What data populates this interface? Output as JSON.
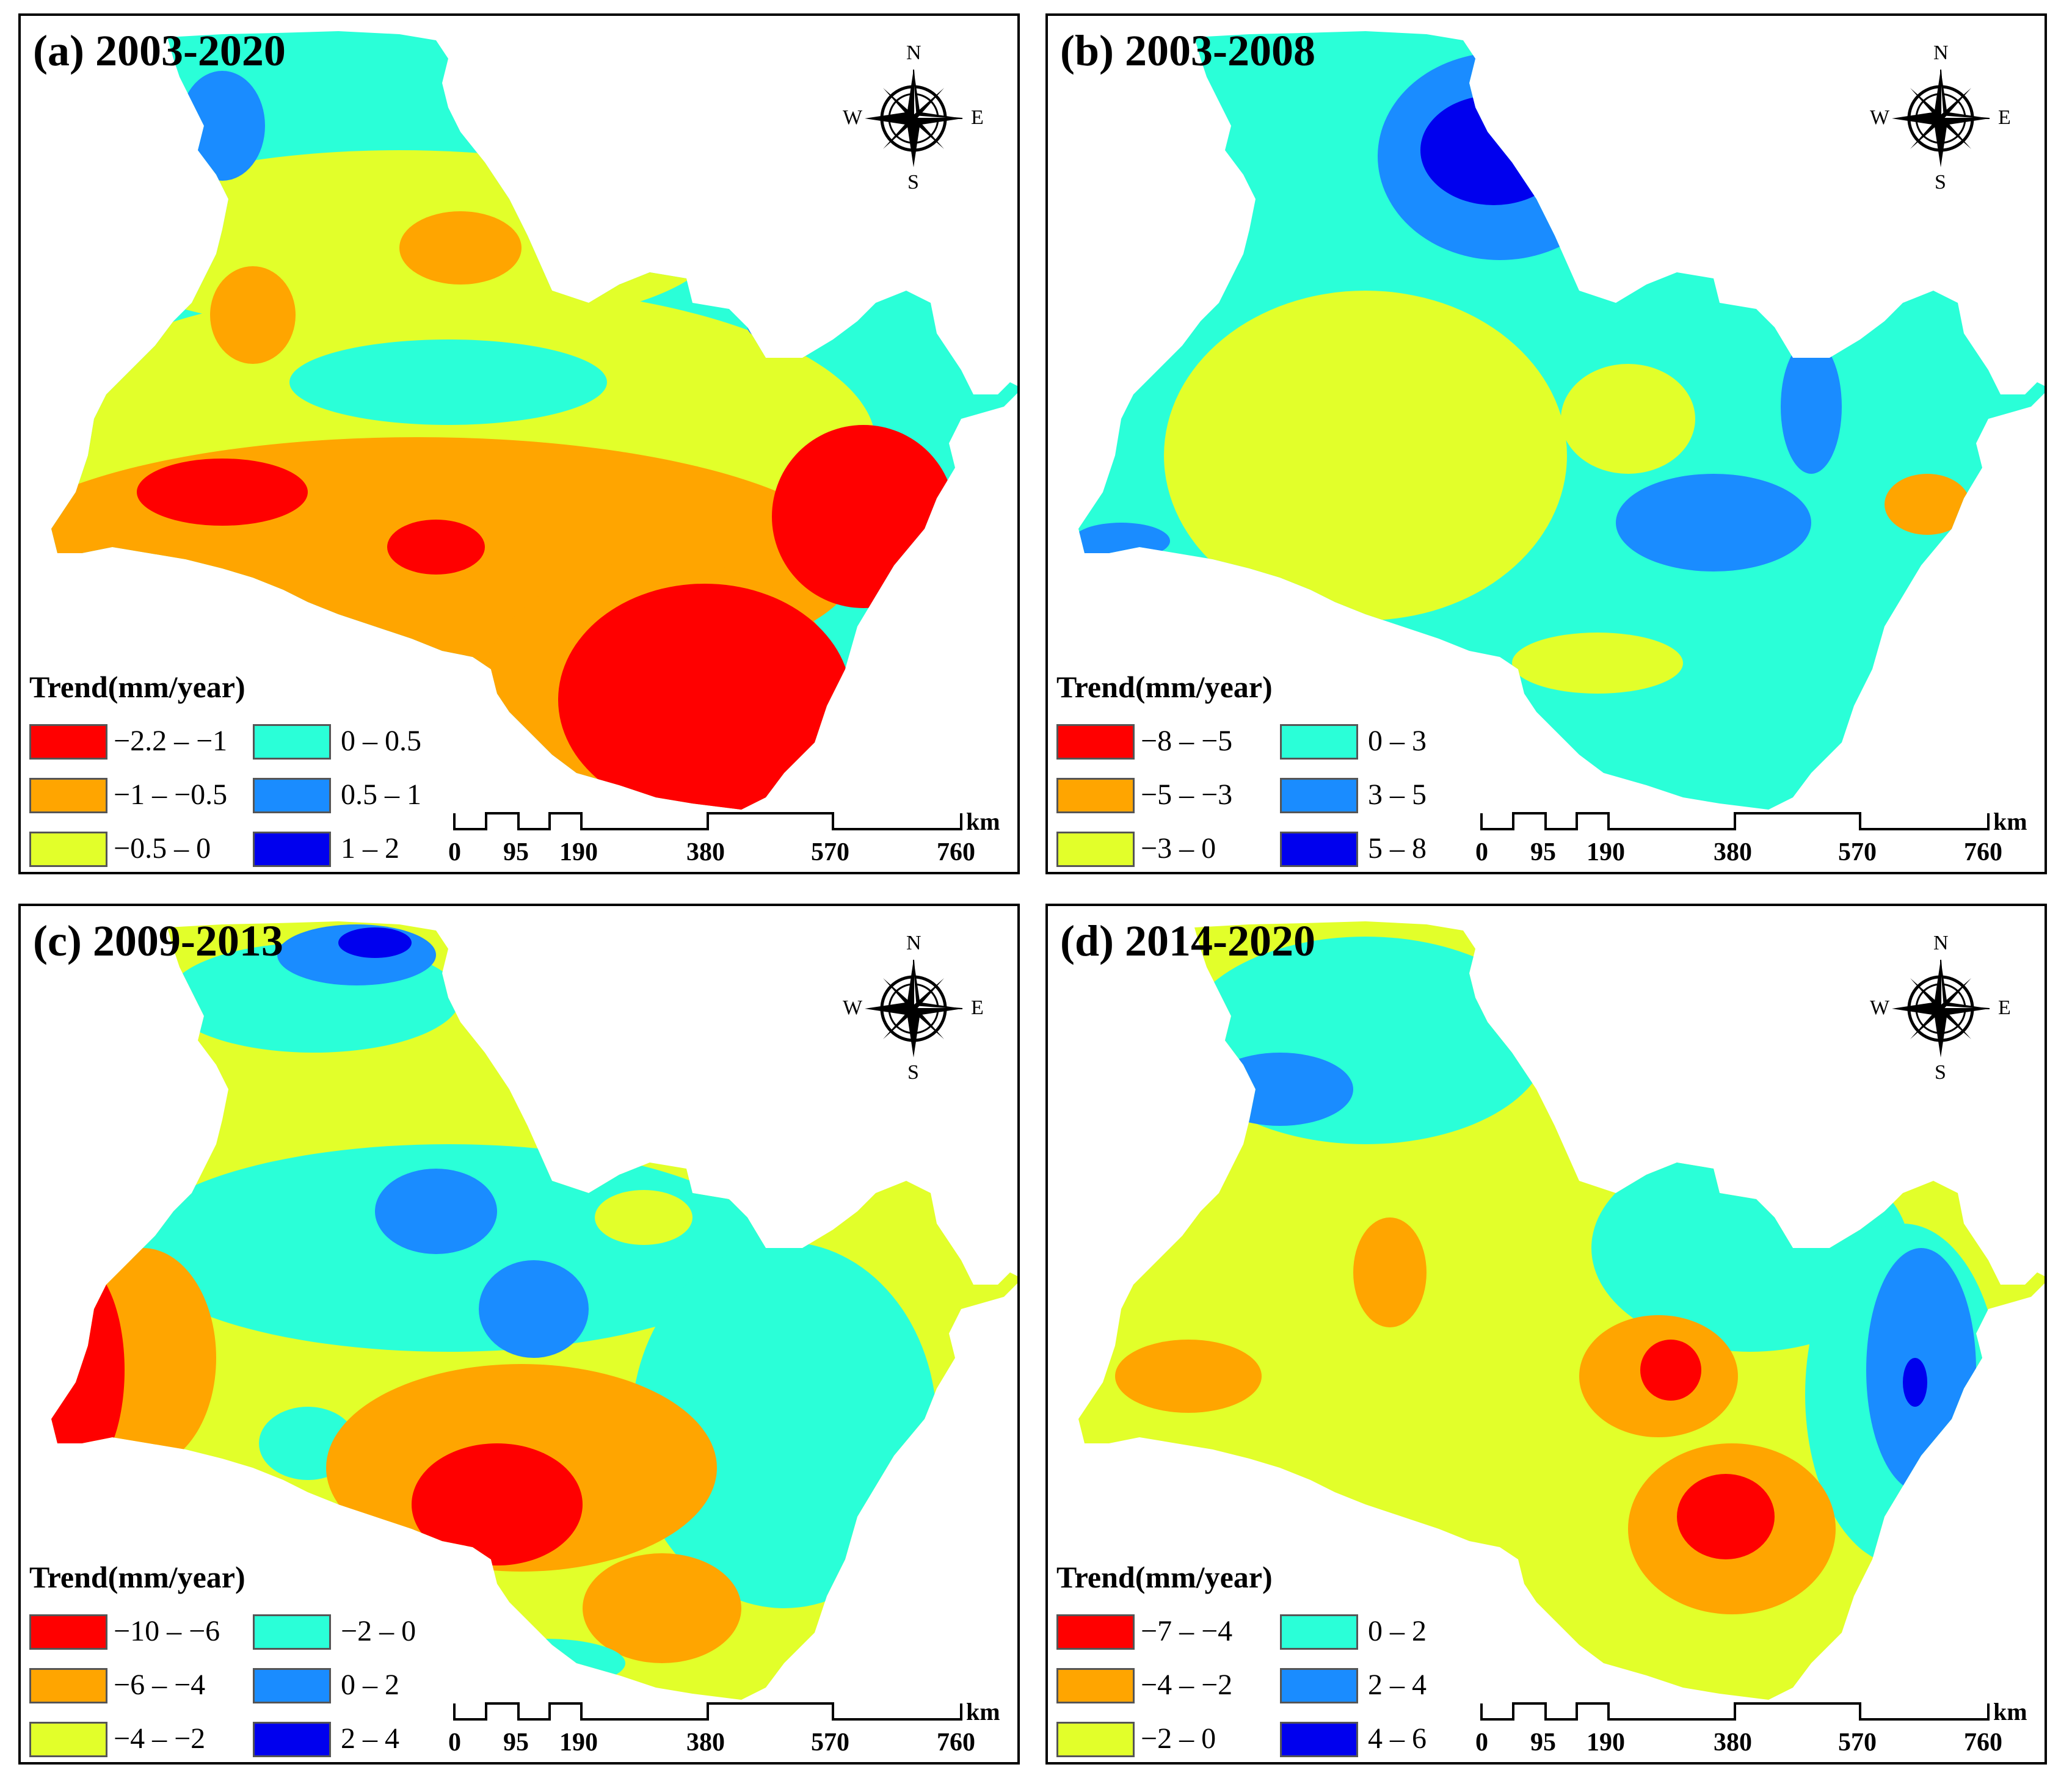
{
  "colors": {
    "red": "#ff0000",
    "orange": "#ffa500",
    "yellow": "#e2ff2a",
    "cyan": "#2affd8",
    "blue": "#1a8cff",
    "navy": "#0000ee"
  },
  "compass": {
    "n": "N",
    "s": "S",
    "e": "E",
    "w": "W"
  },
  "legend_title": "Trend(mm/year)",
  "scale": {
    "unit": "km",
    "ticks": [
      "0",
      "95",
      "190",
      "380",
      "570",
      "760"
    ]
  },
  "panels": [
    {
      "title": "(a) 2003-2020",
      "classes": [
        {
          "label": "−2.2 – −1",
          "color": "#ff0000"
        },
        {
          "label": "−1 – −0.5",
          "color": "#ffa500"
        },
        {
          "label": "−0.5 – 0",
          "color": "#e2ff2a"
        },
        {
          "label": "0 – 0.5",
          "color": "#2affd8"
        },
        {
          "label": "0.5 – 1",
          "color": "#1a8cff"
        },
        {
          "label": "1 – 2",
          "color": "#0000ee"
        }
      ]
    },
    {
      "title": "(b) 2003-2008",
      "classes": [
        {
          "label": "−8 – −5",
          "color": "#ff0000"
        },
        {
          "label": "−5 – −3",
          "color": "#ffa500"
        },
        {
          "label": "−3 – 0",
          "color": "#e2ff2a"
        },
        {
          "label": "0 – 3",
          "color": "#2affd8"
        },
        {
          "label": "3 – 5",
          "color": "#1a8cff"
        },
        {
          "label": "5 – 8",
          "color": "#0000ee"
        }
      ]
    },
    {
      "title": "(c) 2009-2013",
      "classes": [
        {
          "label": "−10 – −6",
          "color": "#ff0000"
        },
        {
          "label": "−6 – −4",
          "color": "#ffa500"
        },
        {
          "label": "−4 – −2",
          "color": "#e2ff2a"
        },
        {
          "label": "−2 – 0",
          "color": "#2affd8"
        },
        {
          "label": "0 – 2",
          "color": "#1a8cff"
        },
        {
          "label": "2 – 4",
          "color": "#0000ee"
        }
      ]
    },
    {
      "title": "(d) 2014-2020",
      "classes": [
        {
          "label": "−7 – −4",
          "color": "#ff0000"
        },
        {
          "label": "−4 – −2",
          "color": "#ffa500"
        },
        {
          "label": "−2 – 0",
          "color": "#e2ff2a"
        },
        {
          "label": "0 – 2",
          "color": "#2affd8"
        },
        {
          "label": "2 – 4",
          "color": "#1a8cff"
        },
        {
          "label": "4 – 6",
          "color": "#0000ee"
        }
      ]
    }
  ]
}
